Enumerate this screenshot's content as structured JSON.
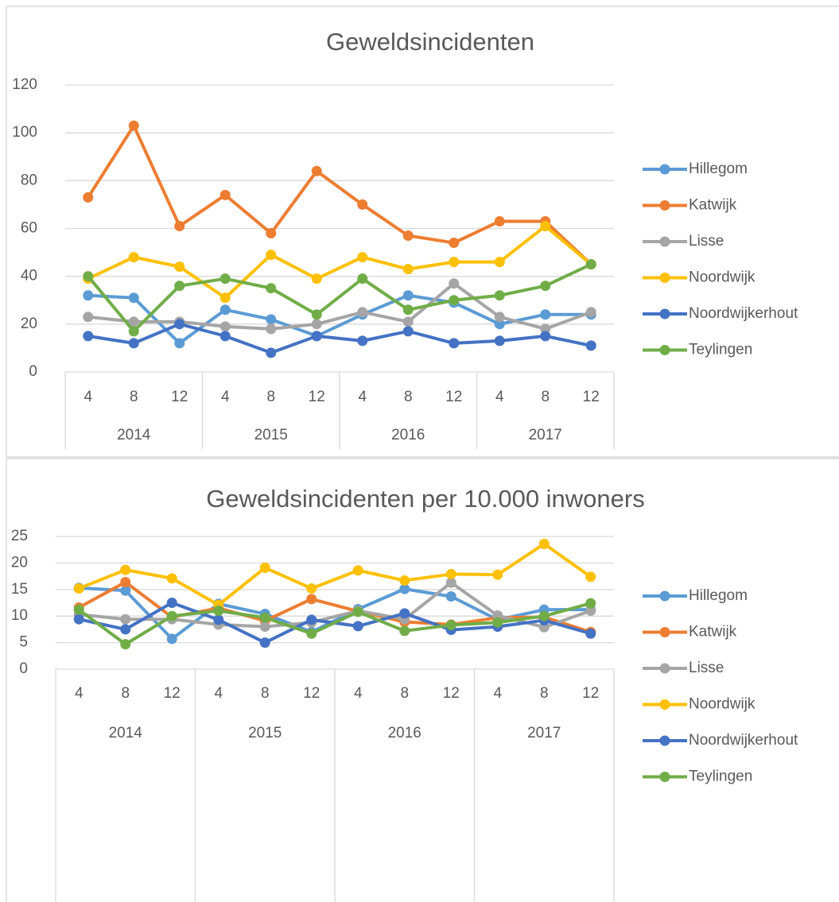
{
  "chart_data": [
    {
      "type": "line",
      "title": "Geweldsincidenten",
      "categories": [
        "4",
        "8",
        "12",
        "4",
        "8",
        "12",
        "4",
        "8",
        "12",
        "4",
        "8",
        "12"
      ],
      "year_labels": [
        "2014",
        "2015",
        "2016",
        "2017"
      ],
      "ylim": [
        0,
        120
      ],
      "yticks": [
        0,
        20,
        40,
        60,
        80,
        100,
        120
      ],
      "grid": true,
      "legend": "right",
      "series": [
        {
          "name": "Hillegom",
          "color": "#5b9bd5",
          "values": [
            32,
            31,
            12,
            26,
            22,
            15,
            24,
            32,
            29,
            20,
            24,
            24
          ]
        },
        {
          "name": "Katwijk",
          "color": "#ed7d31",
          "values": [
            73,
            103,
            61,
            74,
            58,
            84,
            70,
            57,
            54,
            63,
            63,
            45
          ]
        },
        {
          "name": "Lisse",
          "color": "#a5a5a5",
          "values": [
            23,
            21,
            21,
            19,
            18,
            20,
            25,
            21,
            37,
            23,
            18,
            25
          ]
        },
        {
          "name": "Noordwijk",
          "color": "#ffc000",
          "values": [
            39,
            48,
            44,
            31,
            49,
            39,
            48,
            43,
            46,
            46,
            61,
            45
          ]
        },
        {
          "name": "Noordwijkerhout",
          "color": "#4472c4",
          "values": [
            15,
            12,
            20,
            15,
            8,
            15,
            13,
            17,
            12,
            13,
            15,
            11
          ]
        },
        {
          "name": "Teylingen",
          "color": "#70ad47",
          "values": [
            40,
            17,
            36,
            39,
            35,
            24,
            39,
            26,
            30,
            32,
            36,
            45
          ]
        }
      ]
    },
    {
      "type": "line",
      "title": "Geweldsincidenten per 10.000 inwoners",
      "categories": [
        "4",
        "8",
        "12",
        "4",
        "8",
        "12",
        "4",
        "8",
        "12",
        "4",
        "8",
        "12"
      ],
      "year_labels": [
        "2014",
        "2015",
        "2016",
        "2017"
      ],
      "ylim": [
        0,
        25
      ],
      "yticks": [
        0,
        5,
        10,
        15,
        20,
        25
      ],
      "grid": true,
      "legend": "right",
      "series": [
        {
          "name": "Hillegom",
          "color": "#5b9bd5",
          "values": [
            15.3,
            14.8,
            5.7,
            12.3,
            10.4,
            7.0,
            11.3,
            15.1,
            13.7,
            9.3,
            11.2,
            11.2
          ]
        },
        {
          "name": "Katwijk",
          "color": "#ed7d31",
          "values": [
            11.6,
            16.4,
            9.8,
            11.5,
            9.1,
            13.2,
            10.9,
            8.9,
            8.4,
            9.7,
            9.8,
            7.0
          ]
        },
        {
          "name": "Lisse",
          "color": "#a5a5a5",
          "values": [
            10.3,
            9.4,
            9.4,
            8.4,
            8.0,
            8.8,
            11.0,
            9.4,
            16.3,
            10.1,
            7.9,
            11.0
          ]
        },
        {
          "name": "Noordwijk",
          "color": "#ffc000",
          "values": [
            15.2,
            18.7,
            17.1,
            12.1,
            19.1,
            15.2,
            18.6,
            16.7,
            17.9,
            17.8,
            23.6,
            17.4
          ]
        },
        {
          "name": "Noordwijkerhout",
          "color": "#4472c4",
          "values": [
            9.4,
            7.5,
            12.5,
            9.3,
            5.0,
            9.3,
            8.1,
            10.5,
            7.4,
            8.0,
            9.2,
            6.7
          ]
        },
        {
          "name": "Teylingen",
          "color": "#70ad47",
          "values": [
            11.2,
            4.7,
            10.0,
            11.0,
            9.7,
            6.7,
            10.8,
            7.2,
            8.3,
            8.8,
            10.0,
            12.4
          ]
        }
      ]
    }
  ]
}
